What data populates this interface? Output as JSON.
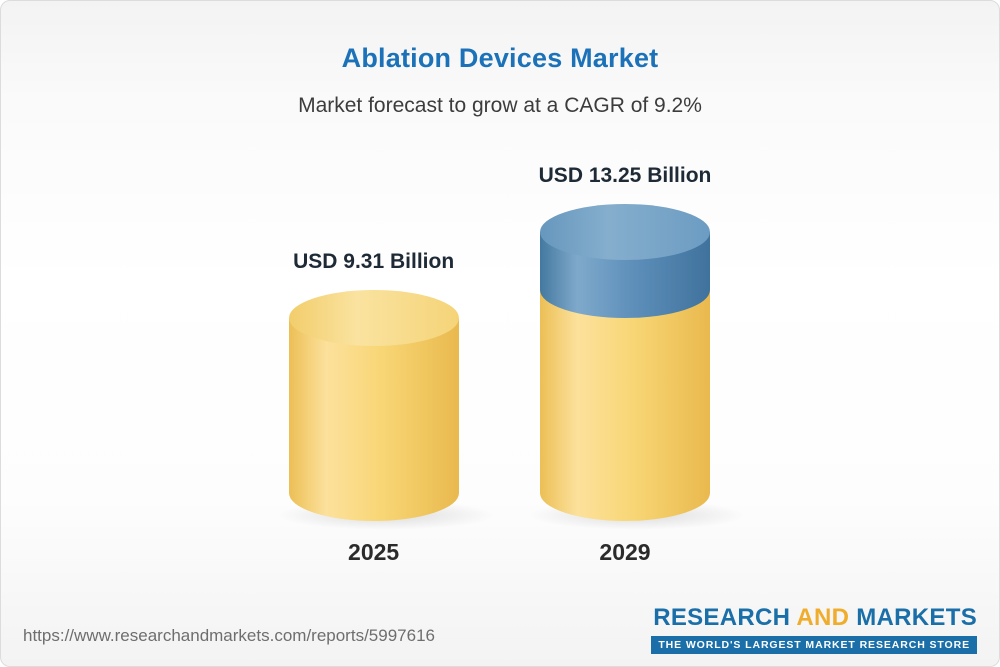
{
  "header": {
    "title": "Ablation Devices Market",
    "subtitle": "Market forecast to grow at a CAGR of 9.2%"
  },
  "chart_data": {
    "type": "bar",
    "style": "3d-cylinder-stacked",
    "title": "Ablation Devices Market",
    "subtitle": "Market forecast to grow at a CAGR of 9.2%",
    "categories": [
      "2025",
      "2029"
    ],
    "values": [
      9.31,
      13.25
    ],
    "value_labels": [
      "USD 9.31 Billion",
      "USD 13.25 Billion"
    ],
    "unit": "USD Billion",
    "cagr_pct": 9.2,
    "ylim": [
      0,
      13.25
    ],
    "grid": false,
    "legend": false,
    "bars": [
      {
        "category": "2025",
        "segments": [
          {
            "name": "2025-value",
            "value": 9.31,
            "color": "#F7CE63"
          }
        ]
      },
      {
        "category": "2029",
        "segments": [
          {
            "name": "2025-base",
            "value": 9.31,
            "color": "#F7CE63"
          },
          {
            "name": "growth-to-2029",
            "value": 3.94,
            "color": "#5588B2"
          }
        ]
      }
    ]
  },
  "footer": {
    "url": "https://www.researchandmarkets.com/reports/5997616",
    "logo": {
      "word1": "RESEARCH",
      "word2": "AND",
      "word3": "MARKETS",
      "tagline": "THE WORLD'S LARGEST MARKET RESEARCH STORE"
    }
  },
  "colors": {
    "title_blue": "#1C72B8",
    "subtitle_gray": "#3C3C3C",
    "bar_yellow": "#F7CE63",
    "bar_blue": "#5588B2",
    "logo_blue": "#1A6FA9",
    "logo_yellow": "#F0AD2D"
  }
}
